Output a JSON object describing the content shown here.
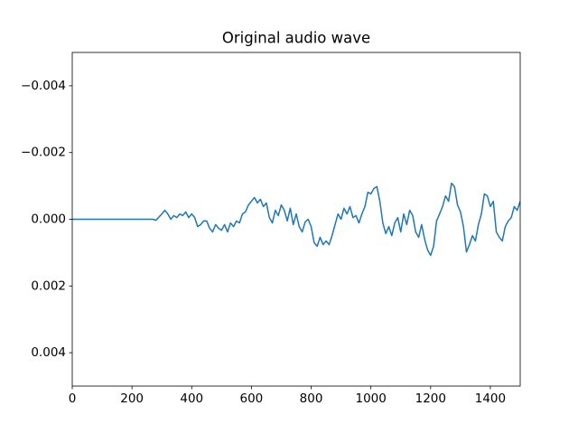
{
  "chart_data": {
    "type": "line",
    "title": "Original audio wave",
    "x": [
      0,
      100,
      200,
      270,
      280,
      300,
      310,
      320,
      330,
      340,
      350,
      360,
      370,
      380,
      390,
      400,
      410,
      420,
      430,
      440,
      450,
      460,
      470,
      480,
      490,
      500,
      510,
      520,
      530,
      540,
      550,
      560,
      570,
      580,
      590,
      600,
      610,
      620,
      630,
      640,
      650,
      660,
      670,
      680,
      690,
      700,
      710,
      720,
      730,
      740,
      750,
      760,
      770,
      780,
      790,
      800,
      810,
      820,
      830,
      840,
      850,
      860,
      870,
      880,
      890,
      900,
      910,
      920,
      930,
      940,
      950,
      960,
      970,
      980,
      990,
      1000,
      1010,
      1020,
      1030,
      1040,
      1050,
      1060,
      1070,
      1080,
      1090,
      1100,
      1110,
      1120,
      1130,
      1140,
      1150,
      1160,
      1170,
      1180,
      1190,
      1200,
      1210,
      1220,
      1230,
      1240,
      1250,
      1260,
      1270,
      1280,
      1290,
      1300,
      1310,
      1320,
      1330,
      1340,
      1350,
      1360,
      1370,
      1380,
      1390,
      1400,
      1410,
      1420,
      1430,
      1440,
      1450,
      1460,
      1470,
      1480,
      1490,
      1500
    ],
    "series": [
      {
        "color": "#1f77b4",
        "values": [
          0,
          0,
          0,
          0,
          3e-05,
          -0.00016,
          -0.00027,
          -0.00016,
          0,
          -0.00011,
          -5e-05,
          -0.00016,
          -0.00011,
          -0.00022,
          -5e-05,
          -0.00016,
          -5e-05,
          0.00022,
          0.00016,
          5e-05,
          5e-05,
          0.00027,
          0.00038,
          0.00016,
          0.00027,
          0.00033,
          0.00016,
          0.00038,
          0.00011,
          0.00022,
          5e-05,
          0.00011,
          -0.00016,
          -0.00022,
          -0.00043,
          -0.00054,
          -0.00065,
          -0.00049,
          -0.0006,
          -0.00038,
          -0.00049,
          -5e-05,
          0.00011,
          -0.00027,
          -0.00011,
          -0.00043,
          -0.00027,
          5e-05,
          -0.00033,
          0.00016,
          -0.00016,
          0.00022,
          0.00038,
          8e-05,
          0,
          0.00022,
          0.0007,
          0.00081,
          0.00054,
          0.00076,
          0.00065,
          0.00076,
          0.00049,
          0.00016,
          -0.00016,
          0,
          -0.00033,
          -0.00016,
          -0.00038,
          -5e-05,
          -0.00011,
          0.00011,
          -0.00016,
          -0.00038,
          -0.00081,
          -0.00076,
          -0.00092,
          -0.00098,
          -0.00054,
          0.00011,
          0.00043,
          0.00022,
          0.00049,
          0.00011,
          -5e-05,
          0.00038,
          -0.00016,
          0.00016,
          -0.00027,
          -0.00011,
          0.00038,
          0.00054,
          0.00016,
          0.0006,
          0.00092,
          0.00108,
          0.00081,
          5e-05,
          -0.00016,
          -0.00038,
          -0.0007,
          -0.00054,
          -0.00108,
          -0.00098,
          -0.00043,
          -0.00022,
          0.00022,
          0.00098,
          0.00076,
          0.00049,
          0.00065,
          0.00016,
          -0.00016,
          -0.00076,
          -0.0007,
          -0.00038,
          -0.00054,
          0.00038,
          0.00054,
          0.00065,
          0.00022,
          5e-05,
          -5e-05,
          -0.00038,
          -0.00027,
          -0.00054
        ]
      }
    ],
    "xlim": [
      0,
      1500
    ],
    "xticks": [
      0,
      200,
      400,
      600,
      800,
      1000,
      1200,
      1400
    ],
    "ylim": [
      0.005,
      -0.005
    ],
    "yticks": [
      {
        "value": -0.004,
        "label": "−0.004"
      },
      {
        "value": -0.002,
        "label": "−0.002"
      },
      {
        "value": 0,
        "label": "0.000"
      },
      0.002,
      0.004
    ],
    "grid": false
  }
}
